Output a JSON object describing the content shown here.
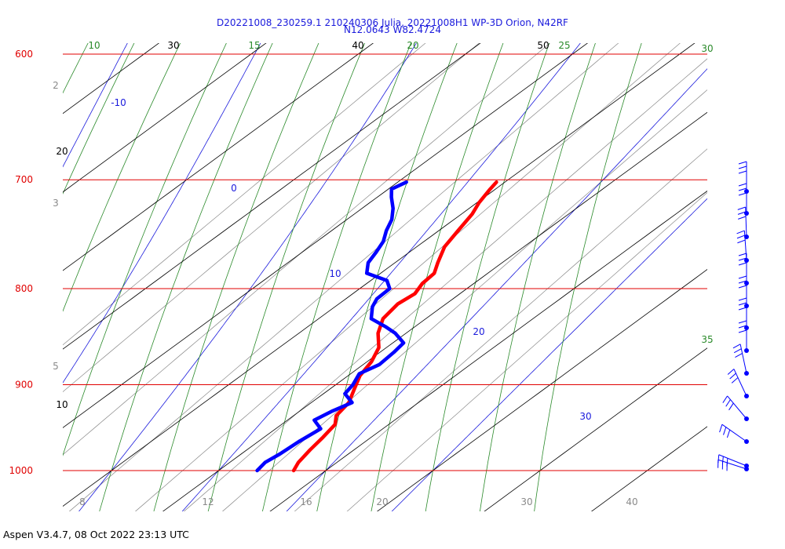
{
  "title_line1": "D20221008_230259.1 210240306 Julia, 20221008H1 WP-3D Orion, N42RF",
  "title_line2": "N12.0643 W82.4724",
  "footer": "Aspen V3.4.7, 08 Oct 2022  23:13 UTC",
  "colors": {
    "isobar": "#e00000",
    "isotherm": "#000000",
    "dry_adiabat": "#2a8a2a",
    "moist_adiabat": "#1a1adc",
    "mixing_ratio": "#8a8a8a",
    "temperature": "#ff0000",
    "dewpoint": "#0000ff",
    "wind_barb": "#0000ff"
  },
  "chart_data": {
    "type": "skew-t",
    "pressure_range_hPa": [
      1000,
      600
    ],
    "isobars": [
      {
        "p": 600,
        "label": "600"
      },
      {
        "p": 700,
        "label": "700"
      },
      {
        "p": 800,
        "label": "800"
      },
      {
        "p": 900,
        "label": "900"
      },
      {
        "p": 1000,
        "label": "1000"
      }
    ],
    "isotherm_labels": [
      "10",
      "20",
      "30",
      "40",
      "50"
    ],
    "dry_adiabat_labels": [
      "10",
      "15",
      "20",
      "25",
      "30",
      "35"
    ],
    "moist_adiabat_labels": [
      "-10",
      "0",
      "10",
      "20",
      "30"
    ],
    "mixing_ratio_labels": [
      "2",
      "3",
      "5",
      "8",
      "12",
      "16",
      "20",
      "30",
      "40"
    ],
    "temperature_profile": [
      {
        "p": 1000,
        "t": 27.0
      },
      {
        "p": 990,
        "t": 26.4
      },
      {
        "p": 975,
        "t": 25.9
      },
      {
        "p": 960,
        "t": 25.5
      },
      {
        "p": 945,
        "t": 25.0
      },
      {
        "p": 935,
        "t": 24.0
      },
      {
        "p": 920,
        "t": 23.5
      },
      {
        "p": 905,
        "t": 22.3
      },
      {
        "p": 890,
        "t": 21.1
      },
      {
        "p": 875,
        "t": 20.4
      },
      {
        "p": 860,
        "t": 19.3
      },
      {
        "p": 845,
        "t": 17.4
      },
      {
        "p": 830,
        "t": 16.0
      },
      {
        "p": 815,
        "t": 15.5
      },
      {
        "p": 805,
        "t": 15.8
      },
      {
        "p": 795,
        "t": 15.2
      },
      {
        "p": 785,
        "t": 15.0
      },
      {
        "p": 775,
        "t": 14.0
      },
      {
        "p": 760,
        "t": 12.6
      },
      {
        "p": 745,
        "t": 11.8
      },
      {
        "p": 730,
        "t": 11.0
      },
      {
        "p": 720,
        "t": 10.2
      },
      {
        "p": 708,
        "t": 9.5
      },
      {
        "p": 702,
        "t": 9.2
      }
    ],
    "dewpoint_profile": [
      {
        "p": 1000,
        "td": 23.6
      },
      {
        "p": 990,
        "td": 23.3
      },
      {
        "p": 980,
        "td": 23.6
      },
      {
        "p": 965,
        "td": 23.8
      },
      {
        "p": 950,
        "td": 24.2
      },
      {
        "p": 940,
        "td": 22.5
      },
      {
        "p": 930,
        "td": 23.0
      },
      {
        "p": 920,
        "td": 23.8
      },
      {
        "p": 910,
        "td": 22.0
      },
      {
        "p": 900,
        "td": 21.6
      },
      {
        "p": 888,
        "td": 20.8
      },
      {
        "p": 878,
        "td": 21.5
      },
      {
        "p": 865,
        "td": 21.3
      },
      {
        "p": 855,
        "td": 21.0
      },
      {
        "p": 845,
        "td": 19.0
      },
      {
        "p": 838,
        "td": 17.2
      },
      {
        "p": 830,
        "td": 14.9
      },
      {
        "p": 818,
        "td": 13.5
      },
      {
        "p": 810,
        "td": 12.9
      },
      {
        "p": 800,
        "td": 12.8
      },
      {
        "p": 792,
        "td": 11.5
      },
      {
        "p": 785,
        "td": 8.7
      },
      {
        "p": 775,
        "td": 7.5
      },
      {
        "p": 765,
        "td": 6.9
      },
      {
        "p": 755,
        "td": 6.2
      },
      {
        "p": 745,
        "td": 5.1
      },
      {
        "p": 735,
        "td": 4.2
      },
      {
        "p": 725,
        "td": 2.9
      },
      {
        "p": 715,
        "td": 1.3
      },
      {
        "p": 708,
        "td": 0.3
      },
      {
        "p": 702,
        "td": 0.8
      }
    ],
    "wind_barb_count": 14
  }
}
